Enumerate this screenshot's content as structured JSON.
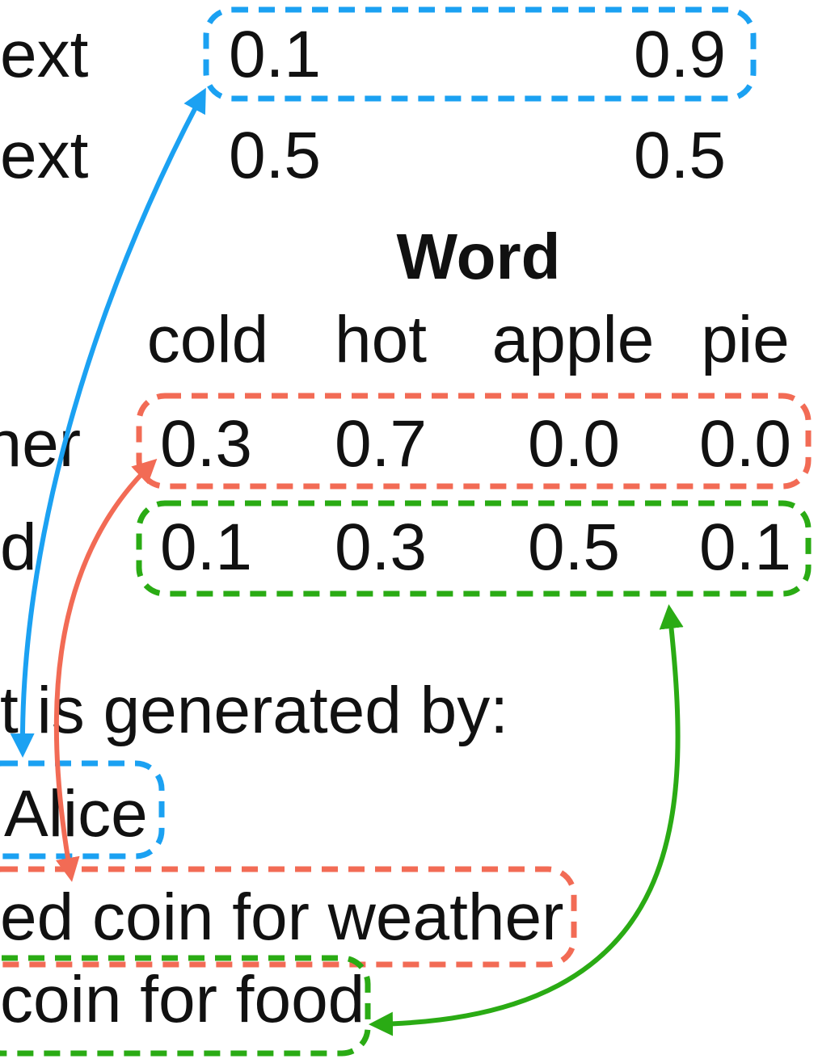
{
  "topic_table": {
    "rows": [
      {
        "label": "ext",
        "values": [
          "0.1",
          "0.9"
        ]
      },
      {
        "label": "ext",
        "values": [
          "0.5",
          "0.5"
        ]
      }
    ]
  },
  "word_table": {
    "title": "Word",
    "columns": [
      "cold",
      "hot",
      "apple",
      "pie"
    ],
    "rows": [
      {
        "label": "her",
        "values": [
          "0.3",
          "0.7",
          "0.0",
          "0.0"
        ]
      },
      {
        "label": "d",
        "values": [
          "0.1",
          "0.3",
          "0.5",
          "0.1"
        ]
      }
    ]
  },
  "generation": {
    "heading": "t is generated by:",
    "steps": [
      "Alice",
      "ed coin for weather",
      "coin for food"
    ]
  }
}
